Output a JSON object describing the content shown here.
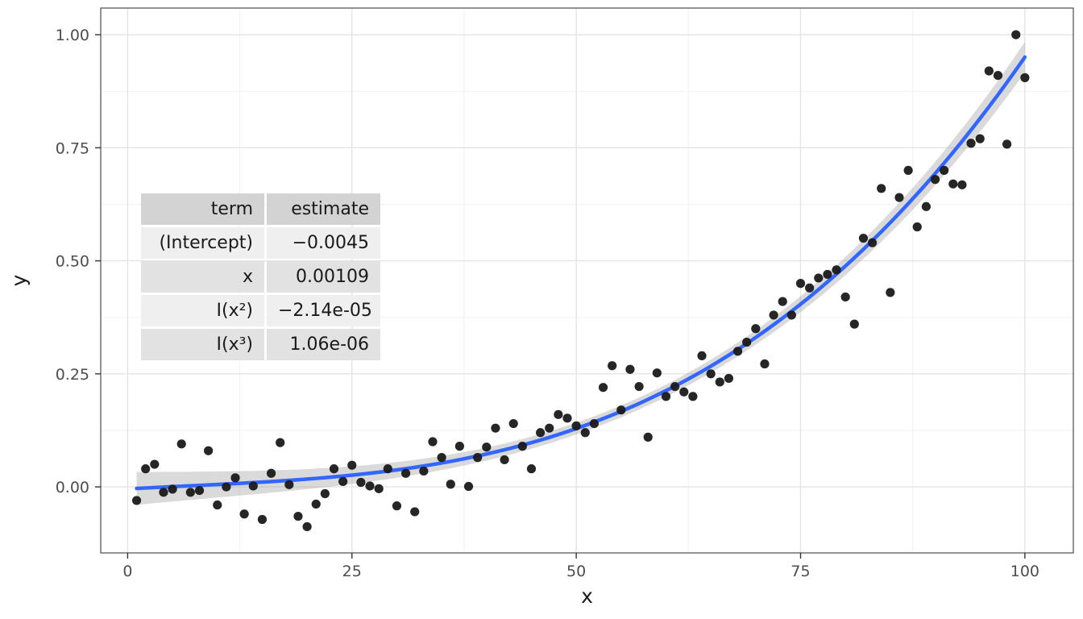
{
  "table": {
    "headers": {
      "term": "term",
      "estimate": "estimate"
    },
    "rows": [
      {
        "term": "(Intercept)",
        "estimate": "−0.0045"
      },
      {
        "term": "x",
        "estimate": "0.00109"
      },
      {
        "term": "I(x²)",
        "estimate": "−2.14e-05"
      },
      {
        "term": "I(x³)",
        "estimate": "1.06e-06"
      }
    ]
  },
  "chart_data": {
    "type": "scatter",
    "title": "",
    "xlabel": "x",
    "ylabel": "y",
    "xlim": [
      -3,
      105.4
    ],
    "ylim": [
      -0.146,
      1.059
    ],
    "x_ticks": [
      0,
      25,
      50,
      75,
      100
    ],
    "x_tick_labels": [
      "0",
      "25",
      "50",
      "75",
      "100"
    ],
    "y_ticks": [
      0,
      0.25,
      0.5,
      0.75,
      1.0
    ],
    "y_tick_labels": [
      "0.00",
      "0.25",
      "0.50",
      "0.75",
      "1.00"
    ],
    "grid": true,
    "legend": "none",
    "points": [
      [
        1,
        -0.03
      ],
      [
        2,
        0.04
      ],
      [
        3,
        0.05
      ],
      [
        4,
        -0.012
      ],
      [
        5,
        -0.005
      ],
      [
        6,
        0.095
      ],
      [
        7,
        -0.012
      ],
      [
        8,
        -0.008
      ],
      [
        9,
        0.08
      ],
      [
        10,
        -0.04
      ],
      [
        11,
        0.0
      ],
      [
        12,
        0.02
      ],
      [
        13,
        -0.06
      ],
      [
        14,
        0.002
      ],
      [
        15,
        -0.072
      ],
      [
        16,
        0.03
      ],
      [
        17,
        0.098
      ],
      [
        18,
        0.005
      ],
      [
        19,
        -0.065
      ],
      [
        20,
        -0.088
      ],
      [
        21,
        -0.038
      ],
      [
        22,
        -0.015
      ],
      [
        23,
        0.04
      ],
      [
        24,
        0.012
      ],
      [
        25,
        0.048
      ],
      [
        26,
        0.01
      ],
      [
        27,
        0.002
      ],
      [
        28,
        -0.004
      ],
      [
        29,
        0.04
      ],
      [
        30,
        -0.042
      ],
      [
        31,
        0.03
      ],
      [
        32,
        -0.055
      ],
      [
        33,
        0.035
      ],
      [
        34,
        0.1
      ],
      [
        35,
        0.065
      ],
      [
        36,
        0.006
      ],
      [
        37,
        0.09
      ],
      [
        38,
        0.001
      ],
      [
        39,
        0.065
      ],
      [
        40,
        0.088
      ],
      [
        41,
        0.13
      ],
      [
        42,
        0.06
      ],
      [
        43,
        0.14
      ],
      [
        44,
        0.09
      ],
      [
        45,
        0.04
      ],
      [
        46,
        0.12
      ],
      [
        47,
        0.13
      ],
      [
        48,
        0.16
      ],
      [
        49,
        0.152
      ],
      [
        50,
        0.135
      ],
      [
        51,
        0.12
      ],
      [
        52,
        0.14
      ],
      [
        53,
        0.22
      ],
      [
        54,
        0.268
      ],
      [
        55,
        0.17
      ],
      [
        56,
        0.26
      ],
      [
        57,
        0.222
      ],
      [
        58,
        0.11
      ],
      [
        59,
        0.252
      ],
      [
        60,
        0.2
      ],
      [
        61,
        0.222
      ],
      [
        62,
        0.21
      ],
      [
        63,
        0.2
      ],
      [
        64,
        0.29
      ],
      [
        65,
        0.25
      ],
      [
        66,
        0.232
      ],
      [
        67,
        0.24
      ],
      [
        68,
        0.3
      ],
      [
        69,
        0.32
      ],
      [
        70,
        0.35
      ],
      [
        71,
        0.272
      ],
      [
        72,
        0.38
      ],
      [
        73,
        0.41
      ],
      [
        74,
        0.38
      ],
      [
        75,
        0.45
      ],
      [
        76,
        0.44
      ],
      [
        77,
        0.462
      ],
      [
        78,
        0.47
      ],
      [
        79,
        0.48
      ],
      [
        80,
        0.42
      ],
      [
        81,
        0.36
      ],
      [
        82,
        0.55
      ],
      [
        83,
        0.54
      ],
      [
        84,
        0.66
      ],
      [
        85,
        0.43
      ],
      [
        86,
        0.64
      ],
      [
        87,
        0.7
      ],
      [
        88,
        0.575
      ],
      [
        89,
        0.62
      ],
      [
        90,
        0.68
      ],
      [
        91,
        0.7
      ],
      [
        92,
        0.67
      ],
      [
        93,
        0.668
      ],
      [
        94,
        0.76
      ],
      [
        95,
        0.77
      ],
      [
        96,
        0.92
      ],
      [
        97,
        0.91
      ],
      [
        98,
        0.758
      ],
      [
        99,
        1.0
      ],
      [
        100,
        0.905
      ]
    ],
    "fit": {
      "type": "polynomial",
      "coefficients": [
        -0.0045,
        0.00109,
        -2.14e-05,
        1.06e-06
      ],
      "x_range": [
        1,
        100
      ]
    },
    "band": {
      "base": 0.013,
      "quad": 9e-06,
      "center": 52
    },
    "colors": {
      "point": "#1a1a1a",
      "line": "#3366FF",
      "band": "#9e9e9e",
      "band_opacity": "0.38",
      "grid_major": "#e4e4e4",
      "grid_minor": "#f2f2f2",
      "panel_border": "#595959",
      "tick": "#333333",
      "tick_label": "#4d4d4d",
      "axis_title": "#1a1a1a"
    }
  }
}
